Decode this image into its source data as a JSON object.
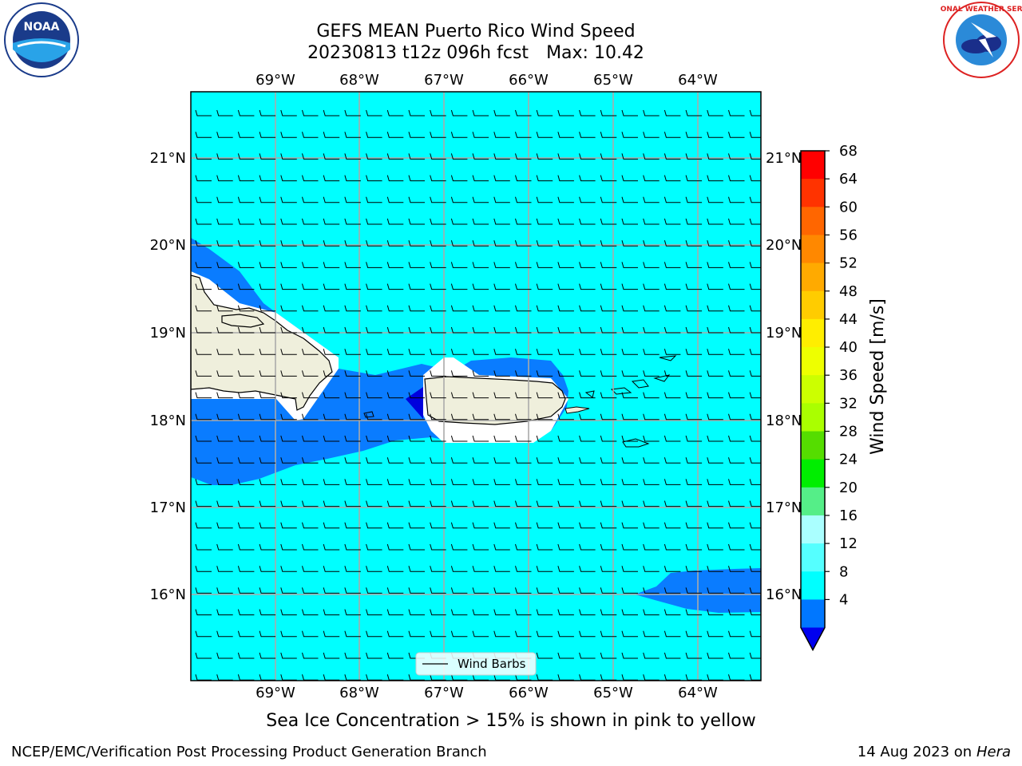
{
  "title_line1": "GEFS MEAN Puerto Rico Wind Speed",
  "title_run": "20230813 t12z 096h fcst",
  "title_max": "Max: 10.42",
  "lon_ticks": [
    "69°W",
    "68°W",
    "67°W",
    "66°W",
    "65°W",
    "64°W"
  ],
  "lat_ticks": [
    "21°N",
    "20°N",
    "19°N",
    "18°N",
    "17°N",
    "16°N"
  ],
  "legend_label": "Wind Barbs",
  "colorbar": {
    "label": "Wind Speed [m/s]",
    "ticks": [
      "68",
      "64",
      "60",
      "56",
      "52",
      "48",
      "44",
      "40",
      "36",
      "32",
      "28",
      "24",
      "20",
      "16",
      "12",
      "8",
      "4"
    ],
    "colors": [
      "#ff0000",
      "#ff3300",
      "#ff6600",
      "#ff8800",
      "#ffaa00",
      "#ffcc00",
      "#ffee00",
      "#eeff00",
      "#ccff00",
      "#aaff00",
      "#55dd00",
      "#00ee00",
      "#55ee88",
      "#aaffff",
      "#55ffff",
      "#00ffff",
      "#0077ff"
    ],
    "extend_color": "#0000ee"
  },
  "caption": "Sea Ice Concentration > 15% is shown in pink to yellow",
  "footer_left": "NCEP/EMC/Verification Post Processing Product Generation Branch",
  "footer_date": "14 Aug 2023 on",
  "footer_machine": "Hera",
  "logos": {
    "left": "NOAA",
    "right": "NATIONAL WEATHER SERVICE"
  },
  "colors": {
    "ocean": "#00ffff",
    "band": "#0a7cff",
    "deep": "#0000dd",
    "land": "#efefdc"
  }
}
